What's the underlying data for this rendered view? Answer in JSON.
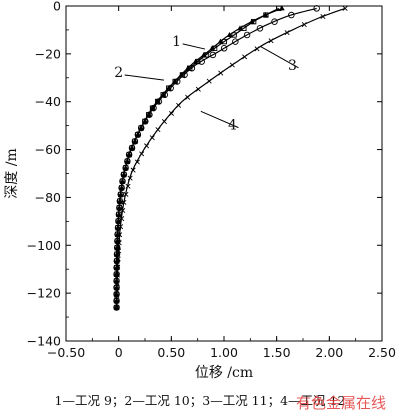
{
  "chart_data": {
    "type": "line",
    "xlabel": "位移 /cm",
    "ylabel": "深度 /m",
    "xlim": [
      -0.5,
      2.5
    ],
    "ylim": [
      -140,
      0
    ],
    "xticks": [
      "−0.50",
      "0",
      "0.50",
      "1.00",
      "1.50",
      "2.00",
      "2.50"
    ],
    "yticks": [
      "0",
      "−20",
      "−40",
      "−60",
      "−80",
      "−100",
      "−120",
      "−140"
    ],
    "grid": false,
    "series": [
      {
        "name": "1",
        "marker": "triangle",
        "color": "#000000",
        "x": [
          -0.02,
          -0.02,
          -0.01,
          0.01,
          0.04,
          0.1,
          0.2,
          0.33,
          0.5,
          0.68,
          0.85,
          1.02,
          1.2,
          1.38,
          1.55
        ],
        "y": [
          -126,
          -110,
          -95,
          -82,
          -72,
          -62,
          -52,
          -42,
          -33,
          -25,
          -19,
          -13,
          -8,
          -4,
          -1
        ]
      },
      {
        "name": "2",
        "marker": "square",
        "color": "#000000",
        "x": [
          -0.02,
          -0.02,
          -0.01,
          0.01,
          0.04,
          0.1,
          0.2,
          0.33,
          0.5,
          0.7,
          0.9,
          1.1,
          1.3,
          1.52
        ],
        "y": [
          -126,
          -110,
          -95,
          -82,
          -72,
          -62,
          -52,
          -42,
          -33,
          -25,
          -18,
          -12,
          -6,
          -1
        ]
      },
      {
        "name": "3",
        "marker": "circle",
        "color": "#000000",
        "x": [
          -0.02,
          -0.02,
          -0.01,
          0.01,
          0.04,
          0.1,
          0.2,
          0.34,
          0.52,
          0.72,
          0.95,
          1.18,
          1.4,
          1.62,
          1.88
        ],
        "y": [
          -126,
          -110,
          -95,
          -82,
          -72,
          -62,
          -52,
          -42,
          -33,
          -25,
          -19,
          -13,
          -8,
          -4,
          -1
        ]
      },
      {
        "name": "4",
        "marker": "x",
        "color": "#000000",
        "x": [
          -0.02,
          -0.01,
          0.01,
          0.05,
          0.12,
          0.24,
          0.4,
          0.6,
          0.84,
          1.1,
          1.38,
          1.65,
          1.9,
          2.15
        ],
        "y": [
          -126,
          -110,
          -95,
          -82,
          -70,
          -60,
          -50,
          -40,
          -32,
          -24,
          -16,
          -10,
          -5,
          -1
        ]
      }
    ],
    "annotations": [
      {
        "label": "1",
        "x": 0.55,
        "y": -15,
        "tx": 0.82,
        "ty": -18
      },
      {
        "label": "2",
        "x": 0.0,
        "y": -28,
        "tx": 0.43,
        "ty": -31
      },
      {
        "label": "3",
        "x": 1.65,
        "y": -25,
        "tx": 1.35,
        "ty": -17
      },
      {
        "label": "4",
        "x": 1.08,
        "y": -50,
        "tx": 0.78,
        "ty": -44
      }
    ]
  },
  "caption": "1—工况 9；2—工况 10；3—工况 11；4—工况 12",
  "watermark": "有色金属在线"
}
